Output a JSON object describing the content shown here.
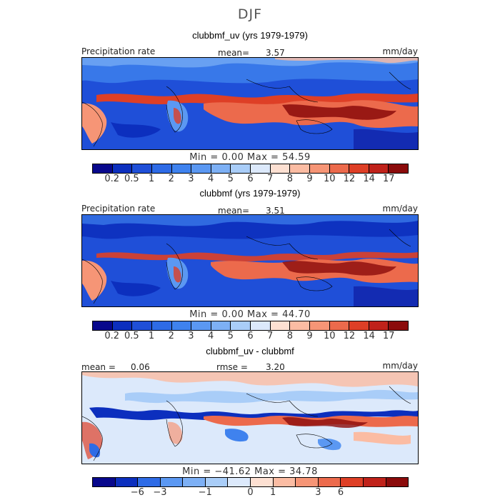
{
  "title": "DJF",
  "chart_data": [
    {
      "type": "heatmap",
      "subtitle": "clubbmf_uv (yrs 1979-1979)",
      "variable_label": "Precipitation rate",
      "mean_label": "mean=",
      "mean_value": "3.57",
      "units": "mm/day",
      "min_label": "Min =",
      "min_value": "0.00",
      "max_label": "Max =",
      "max_value": "54.59",
      "colorbar_ticks": [
        "0.2",
        "0.5",
        "1",
        "2",
        "3",
        "4",
        "5",
        "6",
        "7",
        "8",
        "9",
        "10",
        "12",
        "14",
        "17"
      ],
      "colors": [
        "#08088c",
        "#0c2fbe",
        "#1f4fd8",
        "#2e6be6",
        "#3f82ee",
        "#5b98f2",
        "#7db0f5",
        "#a9cdf8",
        "#dce9fb",
        "#fde0d2",
        "#fbbca3",
        "#f69576",
        "#ec6a4c",
        "#de3f26",
        "#c0221a",
        "#8b0b0b"
      ]
    },
    {
      "type": "heatmap",
      "subtitle": "clubbmf (yrs 1979-1979)",
      "variable_label": "Precipitation rate",
      "mean_label": "mean=",
      "mean_value": "3.51",
      "units": "mm/day",
      "min_label": "Min =",
      "min_value": "0.00",
      "max_label": "Max =",
      "max_value": "44.70",
      "colorbar_ticks": [
        "0.2",
        "0.5",
        "1",
        "2",
        "3",
        "4",
        "5",
        "6",
        "7",
        "8",
        "9",
        "10",
        "12",
        "14",
        "17"
      ],
      "colors": [
        "#08088c",
        "#0c2fbe",
        "#1f4fd8",
        "#2e6be6",
        "#3f82ee",
        "#5b98f2",
        "#7db0f5",
        "#a9cdf8",
        "#dce9fb",
        "#fde0d2",
        "#fbbca3",
        "#f69576",
        "#ec6a4c",
        "#de3f26",
        "#c0221a",
        "#8b0b0b"
      ]
    },
    {
      "type": "heatmap",
      "subtitle": "clubbmf_uv - clubbmf",
      "mean_label": "mean =",
      "mean_value": "0.06",
      "rmse_label": "rmse =",
      "rmse_value": "3.20",
      "units": "mm/day",
      "min_label": "Min =",
      "min_value": "−41.62",
      "max_label": "Max =",
      "max_value": "34.78",
      "colorbar_ticks": [
        "−6",
        "−3",
        "−1",
        "0",
        "1",
        "3",
        "6"
      ],
      "colors": [
        "#08088c",
        "#0c2fbe",
        "#2e6be6",
        "#5b98f2",
        "#7db0f5",
        "#a9cdf8",
        "#dce9fb",
        "#fde0d2",
        "#fbbca3",
        "#f69576",
        "#ec6a4c",
        "#de3f26",
        "#c0221a",
        "#8b0b0b"
      ]
    }
  ]
}
